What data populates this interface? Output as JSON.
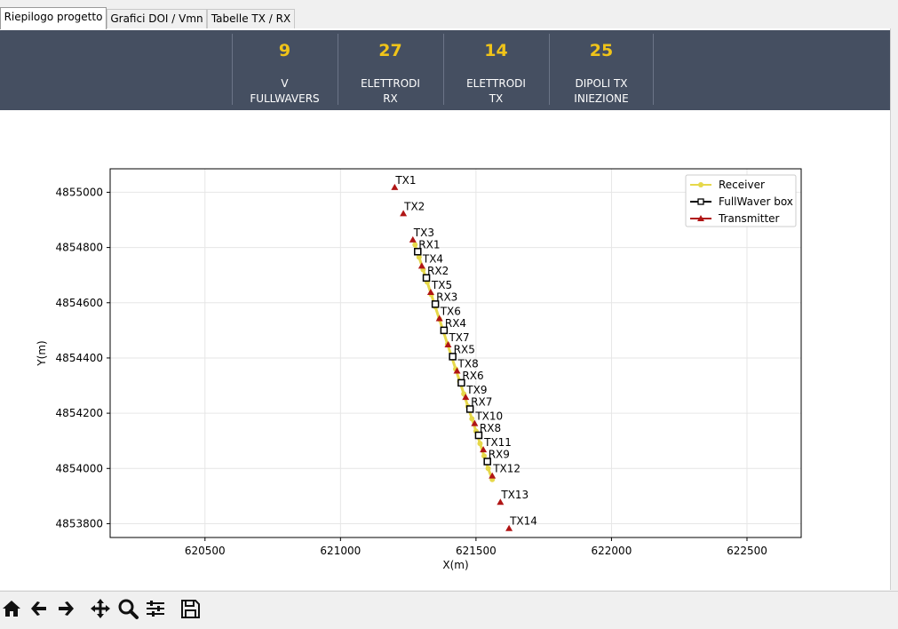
{
  "tabs": [
    {
      "label": "Riepilogo progetto",
      "active": true
    },
    {
      "label": "Grafici DOI / Vmn",
      "active": false
    },
    {
      "label": "Tabelle TX / RX",
      "active": false
    }
  ],
  "stats": [
    {
      "value": "9",
      "label": "V\nFULLWAVERS"
    },
    {
      "value": "27",
      "label": "ELETTRODI\nRX"
    },
    {
      "value": "14",
      "label": "ELETTRODI\nTX"
    },
    {
      "value": "25",
      "label": "DIPOLI TX\nINIEZIONE"
    }
  ],
  "colors": {
    "header_bg": "#454f61",
    "stat_value": "#f0c419",
    "receiver": "#e6d84a",
    "fullwaver": "#000000",
    "transmitter": "#b01515"
  },
  "chart_data": {
    "type": "scatter",
    "xlabel": "X(m)",
    "ylabel": "Y(m)",
    "xlim": [
      620150,
      622700
    ],
    "ylim": [
      4853750,
      4855085
    ],
    "xticks": [
      620500,
      621000,
      621500,
      622000,
      622500
    ],
    "yticks": [
      4853800,
      4854000,
      4854200,
      4854400,
      4854600,
      4854800,
      4855000
    ],
    "grid": true,
    "legend_position": "top-right",
    "legend": [
      "Receiver",
      "FullWaver box",
      "Transmitter"
    ],
    "receiver_line": {
      "x": [
        621275,
        621290,
        621305,
        621320,
        621335,
        621350,
        621365,
        621380,
        621395,
        621410,
        621425,
        621440,
        621455,
        621470,
        621485,
        621500,
        621515,
        621530,
        621545,
        621560
      ],
      "y": [
        4854810,
        4854765,
        4854720,
        4854675,
        4854630,
        4854585,
        4854540,
        4854495,
        4854450,
        4854405,
        4854360,
        4854315,
        4854270,
        4854225,
        4854180,
        4854135,
        4854090,
        4854045,
        4854000,
        4853960
      ]
    },
    "fullwaver_boxes": [
      {
        "name": "RX1",
        "x": 621285,
        "y": 4854785
      },
      {
        "name": "RX2",
        "x": 621317,
        "y": 4854690
      },
      {
        "name": "RX3",
        "x": 621350,
        "y": 4854595
      },
      {
        "name": "RX4",
        "x": 621382,
        "y": 4854500
      },
      {
        "name": "RX5",
        "x": 621414,
        "y": 4854405
      },
      {
        "name": "RX6",
        "x": 621446,
        "y": 4854310
      },
      {
        "name": "RX7",
        "x": 621478,
        "y": 4854215
      },
      {
        "name": "RX8",
        "x": 621510,
        "y": 4854120
      },
      {
        "name": "RX9",
        "x": 621542,
        "y": 4854025
      }
    ],
    "transmitters": [
      {
        "name": "TX1",
        "x": 621200,
        "y": 4855018
      },
      {
        "name": "TX2",
        "x": 621232,
        "y": 4854923
      },
      {
        "name": "TX3",
        "x": 621267,
        "y": 4854828
      },
      {
        "name": "TX4",
        "x": 621300,
        "y": 4854733
      },
      {
        "name": "TX5",
        "x": 621333,
        "y": 4854638
      },
      {
        "name": "TX6",
        "x": 621365,
        "y": 4854543
      },
      {
        "name": "TX7",
        "x": 621397,
        "y": 4854448
      },
      {
        "name": "TX8",
        "x": 621430,
        "y": 4854353
      },
      {
        "name": "TX9",
        "x": 621462,
        "y": 4854258
      },
      {
        "name": "TX10",
        "x": 621495,
        "y": 4854163
      },
      {
        "name": "TX11",
        "x": 621527,
        "y": 4854068
      },
      {
        "name": "TX12",
        "x": 621560,
        "y": 4853973
      },
      {
        "name": "TX13",
        "x": 621590,
        "y": 4853878
      },
      {
        "name": "TX14",
        "x": 621622,
        "y": 4853783
      }
    ]
  },
  "toolbar": [
    "home-icon",
    "back-arrow-icon",
    "forward-arrow-icon",
    "pan-icon",
    "zoom-icon",
    "configure-subplots-icon",
    "save-icon"
  ]
}
